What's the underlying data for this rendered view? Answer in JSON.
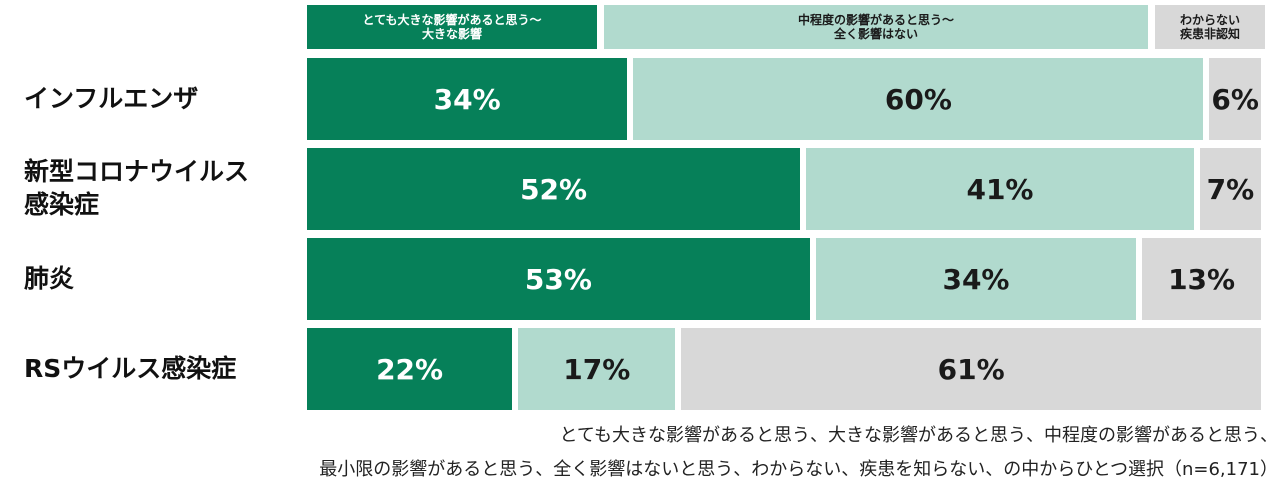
{
  "colors": {
    "dark_green": "#068059",
    "light_green": "#b1dace",
    "gray": "#d8d8d8",
    "dark_text": "#1a1a1a",
    "white_text": "#ffffff"
  },
  "chart_data": {
    "type": "bar",
    "orientation": "horizontal",
    "stacked": true,
    "percent_stacked": true,
    "legend_position": "top",
    "legend": [
      "とても大きな影響があると思う～\n大きな影響",
      "中程度の影響があると思う～\n全く影響はない",
      "わからない\n疾患非認知"
    ],
    "categories": [
      "インフルエンザ",
      "新型コロナウイルス\n感染症",
      "肺炎",
      "RSウイルス感染症"
    ],
    "series": [
      {
        "values": [
          34,
          52,
          53,
          22
        ],
        "labels": [
          "34%",
          "52%",
          "53%",
          "22%"
        ]
      },
      {
        "values": [
          60,
          41,
          34,
          17
        ],
        "labels": [
          "60%",
          "41%",
          "34%",
          "17%"
        ]
      },
      {
        "values": [
          6,
          7,
          13,
          61
        ],
        "labels": [
          "6%",
          "7%",
          "13%",
          "61%"
        ]
      }
    ],
    "unit": "%"
  },
  "footnote": {
    "line1": "とても大きな影響があると思う、大きな影響があると思う、中程度の影響があると思う、",
    "line2": "最小限の影響があると思う、全く影響はないと思う、わからない、疾患を知らない、の中からひとつ選択（n=6,171）"
  }
}
